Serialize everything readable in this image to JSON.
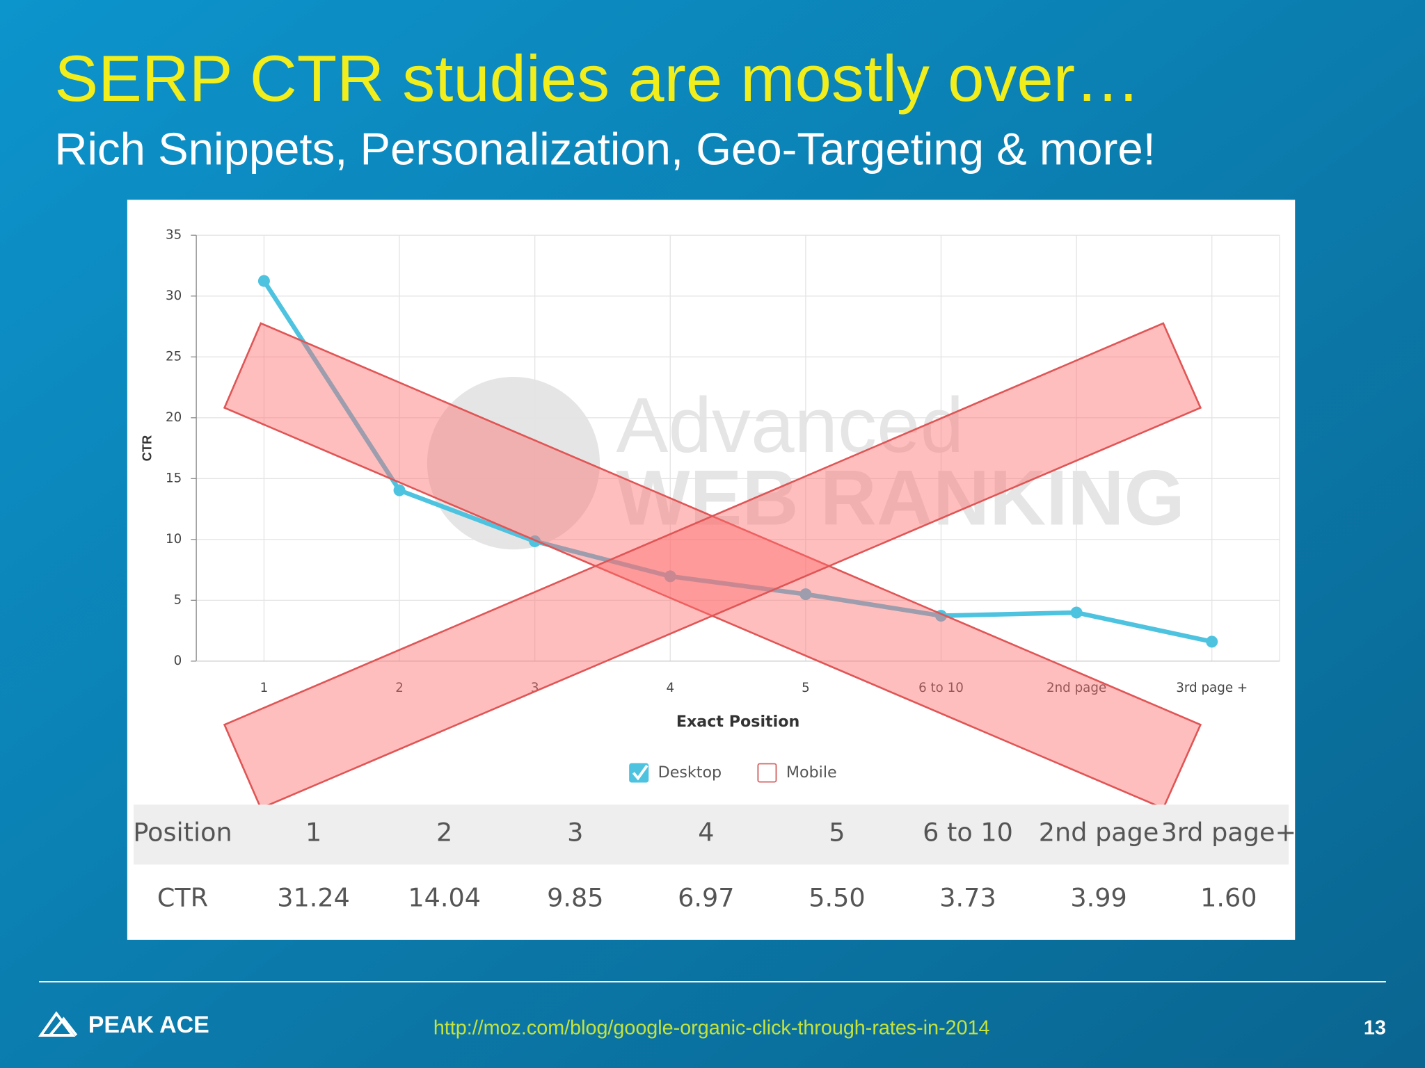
{
  "slide": {
    "title": "SERP CTR studies are mostly over…",
    "subtitle": "Rich Snippets, Personalization, Geo-Targeting & more!"
  },
  "chart_data": {
    "type": "line",
    "x_label": "Exact Position",
    "y_label": "CTR",
    "categories": [
      "1",
      "2",
      "3",
      "4",
      "5",
      "6 to 10",
      "2nd page",
      "3rd page +"
    ],
    "series": [
      {
        "name": "Desktop",
        "color": "#4dc3e0",
        "values": [
          31.24,
          14.04,
          9.85,
          6.97,
          5.5,
          3.73,
          3.99,
          1.6
        ]
      }
    ],
    "legend_items": [
      {
        "name": "Desktop",
        "checked": true
      },
      {
        "name": "Mobile",
        "checked": false
      }
    ],
    "ylim": [
      0,
      35
    ],
    "yticks": [
      0,
      5,
      10,
      15,
      20,
      25,
      30,
      35
    ],
    "grid": true,
    "watermark": [
      "Advanced",
      "WEB RANKING"
    ]
  },
  "table": {
    "rows": [
      [
        "Position",
        "1",
        "2",
        "3",
        "4",
        "5",
        "6 to 10",
        "2nd page",
        "3rd page+"
      ],
      [
        "CTR",
        "31.24",
        "14.04",
        "9.85",
        "6.97",
        "5.50",
        "3.73",
        "3.99",
        "1.60"
      ]
    ]
  },
  "footer": {
    "logo": "PEAK ACE",
    "url": "http://moz.com/blog/google-organic-click-through-rates-in-2014",
    "page_number": "13"
  }
}
